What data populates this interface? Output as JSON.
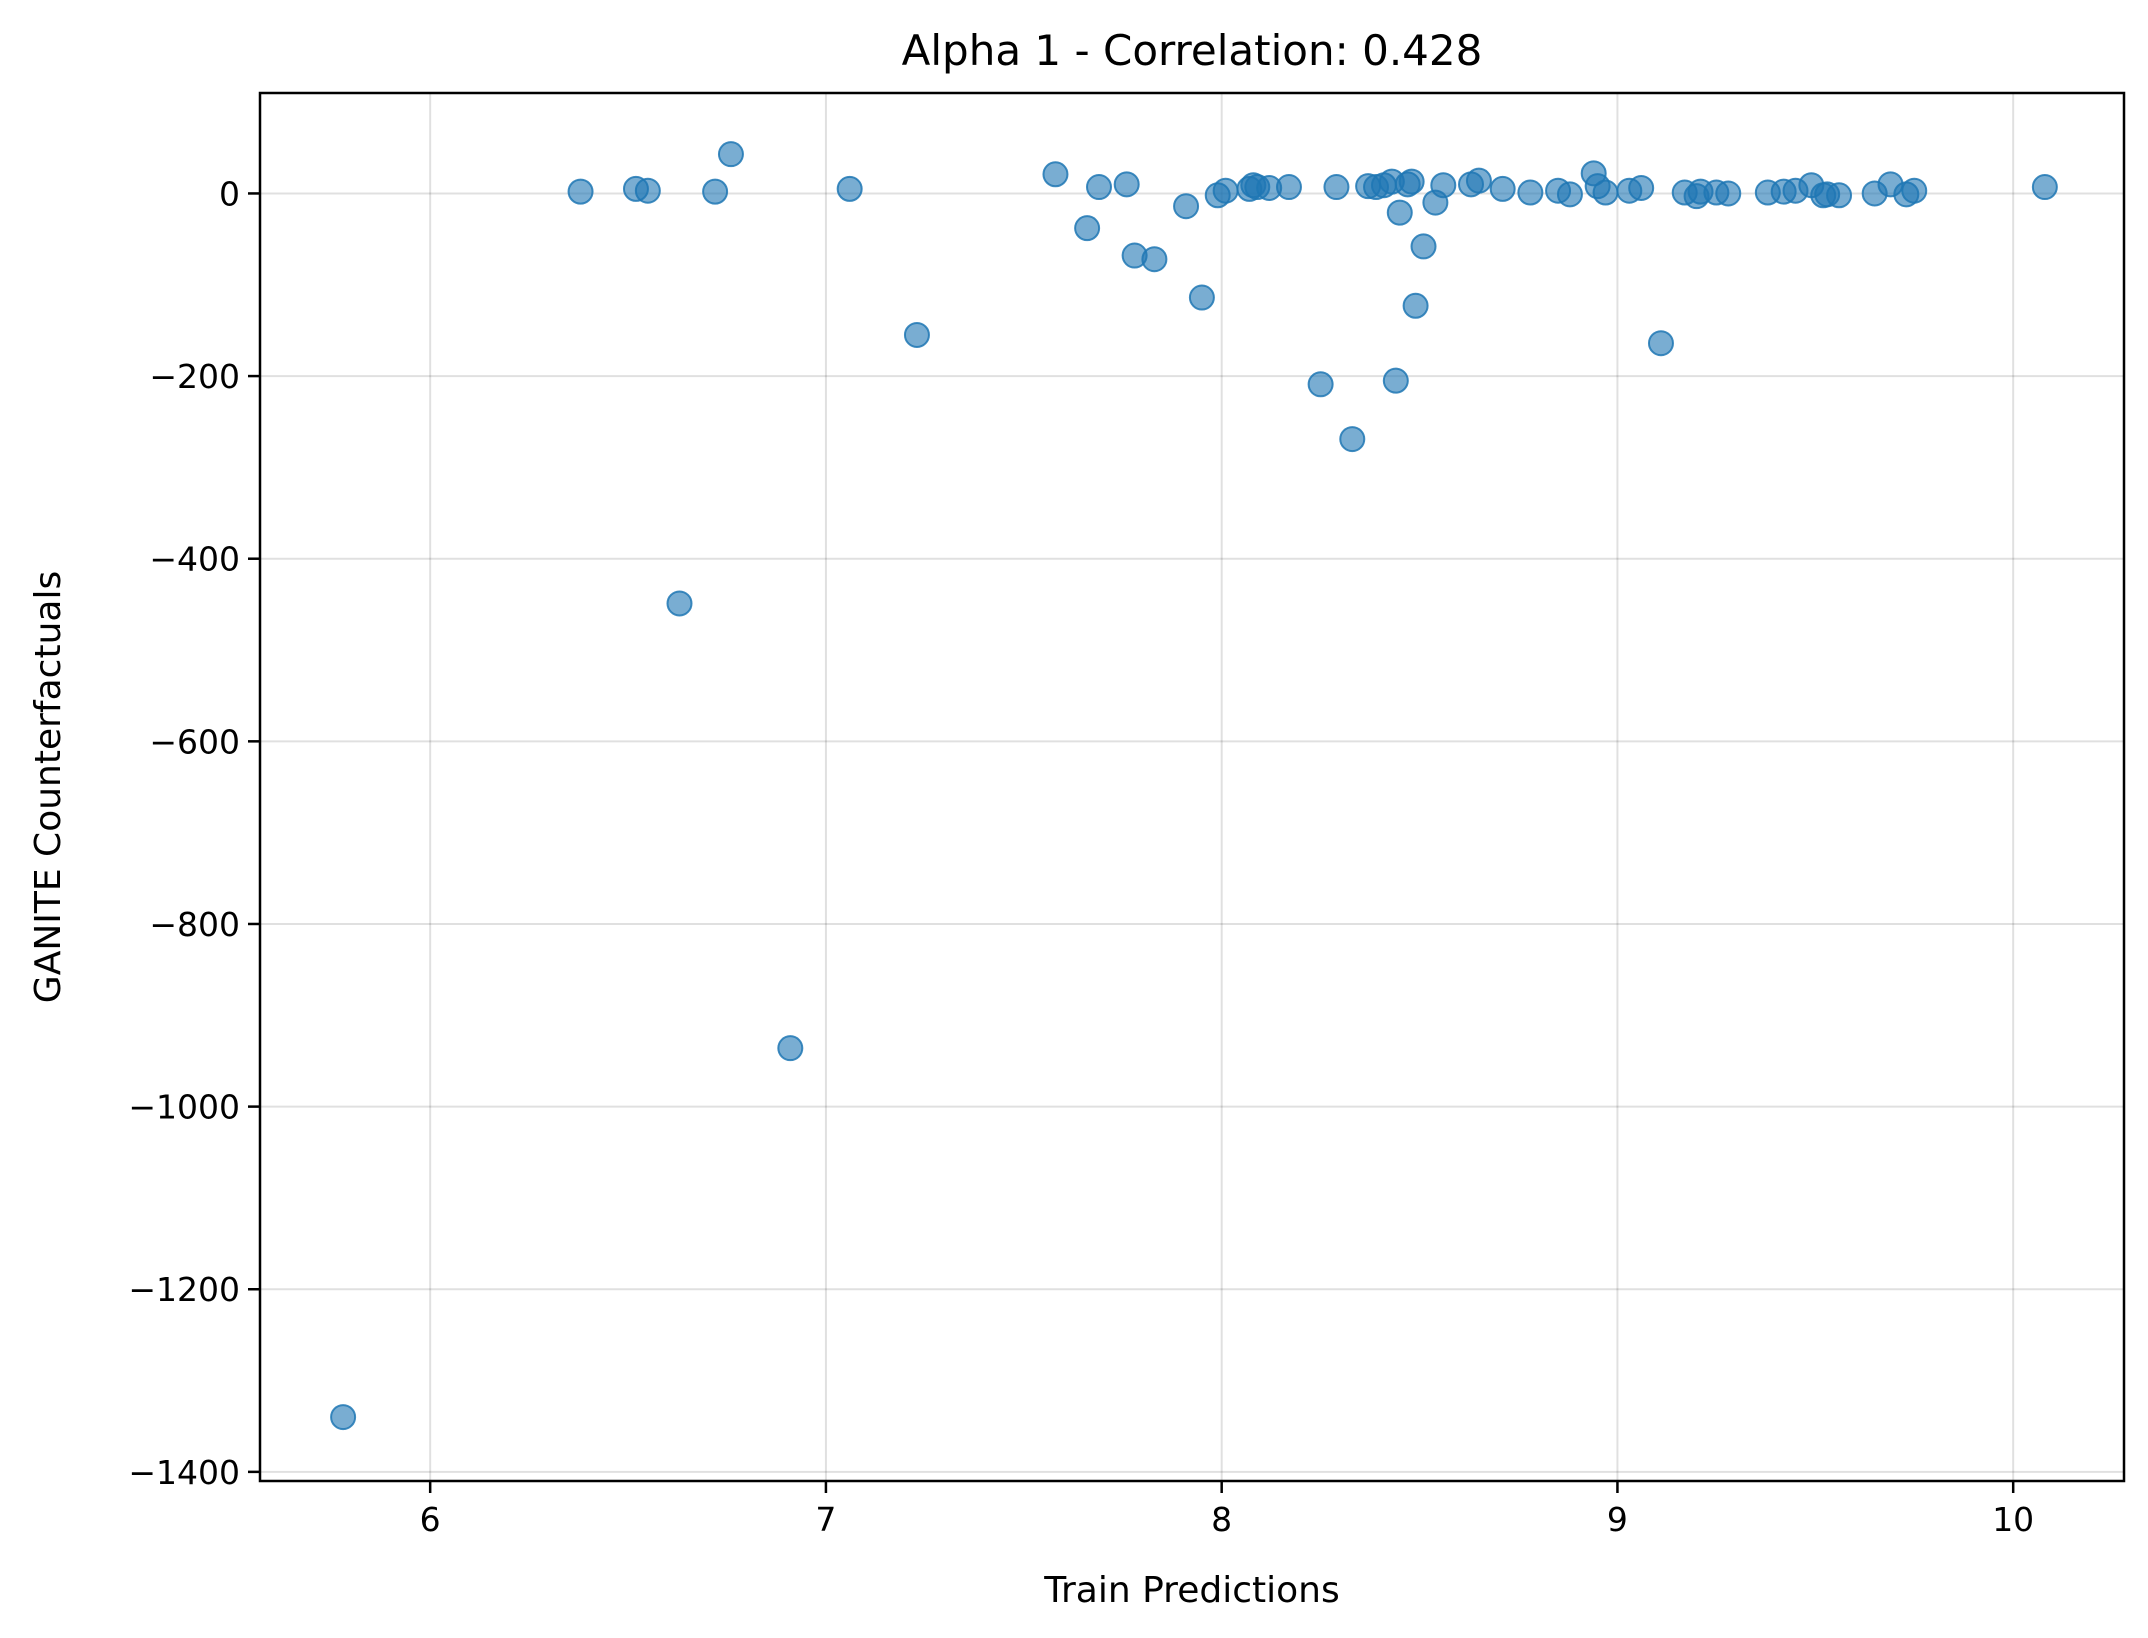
{
  "chart_data": {
    "type": "scatter",
    "title": "Alpha 1 - Correlation: 0.428",
    "xlabel": "Train Predictions",
    "ylabel": "GANITE Counterfactuals",
    "xlim": [
      5.57,
      10.28
    ],
    "ylim": [
      -1410,
      110
    ],
    "xticks": [
      6,
      7,
      8,
      9,
      10
    ],
    "yticks": [
      0,
      -200,
      -400,
      -600,
      -800,
      -1000,
      -1200,
      -1400
    ],
    "grid": true,
    "legend": "none",
    "marker_color": "#1f77b4",
    "marker_alpha": 0.6,
    "points": [
      {
        "x": 5.78,
        "y": -1340
      },
      {
        "x": 6.38,
        "y": 2
      },
      {
        "x": 6.52,
        "y": 5
      },
      {
        "x": 6.55,
        "y": 3
      },
      {
        "x": 6.63,
        "y": -449
      },
      {
        "x": 6.72,
        "y": 2
      },
      {
        "x": 6.76,
        "y": 43
      },
      {
        "x": 6.91,
        "y": -936
      },
      {
        "x": 7.06,
        "y": 5
      },
      {
        "x": 7.23,
        "y": -155
      },
      {
        "x": 7.58,
        "y": 21
      },
      {
        "x": 7.66,
        "y": -38
      },
      {
        "x": 7.69,
        "y": 7
      },
      {
        "x": 7.76,
        "y": 10
      },
      {
        "x": 7.78,
        "y": -68
      },
      {
        "x": 7.83,
        "y": -72
      },
      {
        "x": 7.91,
        "y": -14
      },
      {
        "x": 7.95,
        "y": -114
      },
      {
        "x": 7.99,
        "y": -2
      },
      {
        "x": 8.01,
        "y": 3
      },
      {
        "x": 8.07,
        "y": 5
      },
      {
        "x": 8.08,
        "y": 9
      },
      {
        "x": 8.09,
        "y": 7
      },
      {
        "x": 8.12,
        "y": 6
      },
      {
        "x": 8.17,
        "y": 7
      },
      {
        "x": 8.25,
        "y": -209
      },
      {
        "x": 8.29,
        "y": 7
      },
      {
        "x": 8.33,
        "y": -269
      },
      {
        "x": 8.37,
        "y": 8
      },
      {
        "x": 8.39,
        "y": 7
      },
      {
        "x": 8.41,
        "y": 9
      },
      {
        "x": 8.43,
        "y": 13
      },
      {
        "x": 8.44,
        "y": -205
      },
      {
        "x": 8.45,
        "y": -21
      },
      {
        "x": 8.47,
        "y": 10
      },
      {
        "x": 8.48,
        "y": 13
      },
      {
        "x": 8.49,
        "y": -123
      },
      {
        "x": 8.51,
        "y": -58
      },
      {
        "x": 8.54,
        "y": -10
      },
      {
        "x": 8.56,
        "y": 9
      },
      {
        "x": 8.63,
        "y": 10
      },
      {
        "x": 8.65,
        "y": 14
      },
      {
        "x": 8.71,
        "y": 5
      },
      {
        "x": 8.78,
        "y": 1
      },
      {
        "x": 8.85,
        "y": 3
      },
      {
        "x": 8.88,
        "y": -1
      },
      {
        "x": 8.94,
        "y": 22
      },
      {
        "x": 8.95,
        "y": 8
      },
      {
        "x": 8.97,
        "y": 1
      },
      {
        "x": 9.03,
        "y": 3
      },
      {
        "x": 9.06,
        "y": 6
      },
      {
        "x": 9.11,
        "y": -164
      },
      {
        "x": 9.17,
        "y": 1
      },
      {
        "x": 9.2,
        "y": -3
      },
      {
        "x": 9.21,
        "y": 2
      },
      {
        "x": 9.25,
        "y": 1
      },
      {
        "x": 9.28,
        "y": 0
      },
      {
        "x": 9.38,
        "y": 1
      },
      {
        "x": 9.42,
        "y": 2
      },
      {
        "x": 9.45,
        "y": 3
      },
      {
        "x": 9.49,
        "y": 9
      },
      {
        "x": 9.52,
        "y": -2
      },
      {
        "x": 9.53,
        "y": -1
      },
      {
        "x": 9.56,
        "y": -2
      },
      {
        "x": 9.65,
        "y": 0
      },
      {
        "x": 9.69,
        "y": 10
      },
      {
        "x": 9.73,
        "y": -1
      },
      {
        "x": 9.75,
        "y": 3
      },
      {
        "x": 10.08,
        "y": 7
      }
    ]
  }
}
